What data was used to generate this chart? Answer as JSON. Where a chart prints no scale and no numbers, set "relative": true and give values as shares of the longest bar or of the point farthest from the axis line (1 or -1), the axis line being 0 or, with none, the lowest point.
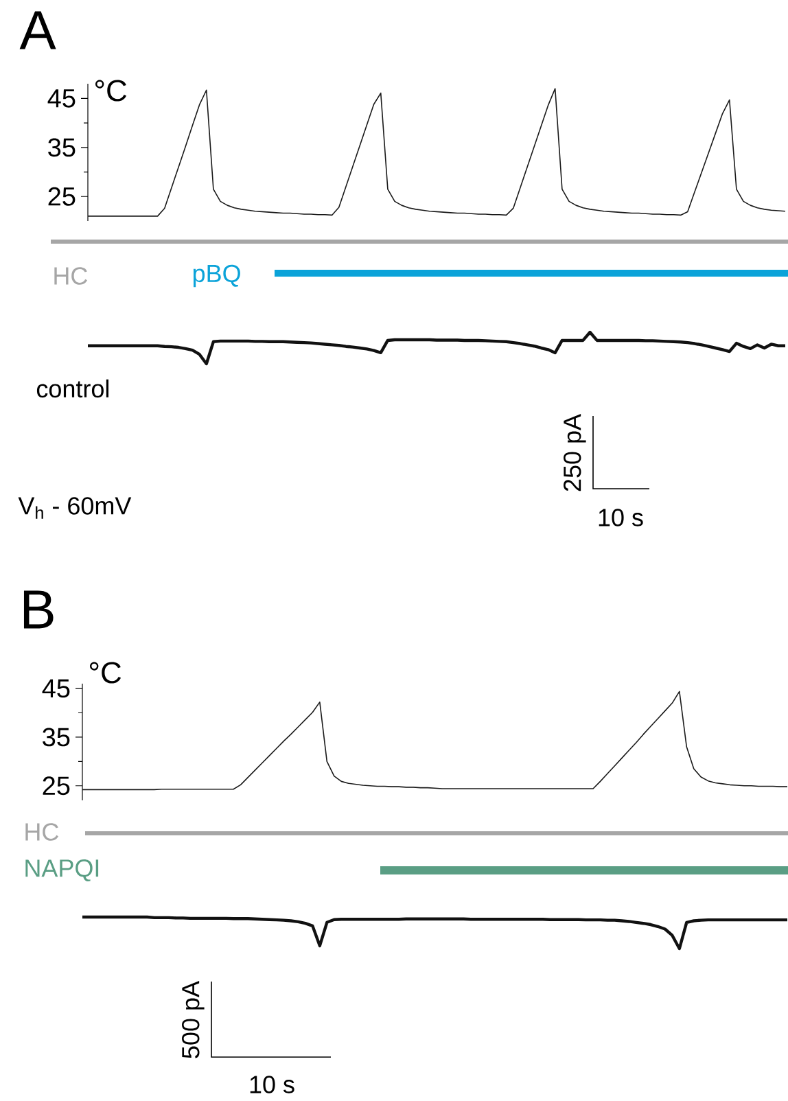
{
  "chart_data": [
    {
      "type": "line",
      "title": "A",
      "ylabel": "°C",
      "categories": [
        null,
        null,
        null,
        null,
        null,
        null,
        null,
        null,
        null,
        null,
        null,
        null,
        null,
        null,
        null,
        null,
        null,
        null,
        null,
        null,
        null,
        null,
        null,
        null,
        null,
        null,
        null,
        null,
        null,
        null,
        null,
        null,
        null,
        null,
        null,
        null,
        null,
        null,
        null,
        null,
        null,
        null,
        null,
        null,
        null,
        null,
        null,
        null,
        null,
        null,
        null,
        null,
        null,
        null,
        null,
        null,
        null,
        null,
        null,
        null,
        null,
        null,
        null,
        null,
        null,
        null,
        null,
        null,
        null,
        null,
        null,
        null,
        null,
        null,
        null,
        null,
        null,
        null,
        null,
        null,
        null,
        null,
        null,
        null,
        null,
        null,
        null,
        null,
        null,
        null,
        null,
        null,
        null,
        null,
        null,
        null,
        null,
        null,
        null,
        null,
        null
      ],
      "series": [
        {
          "color": "#1a1a1a",
          "values": [
            21,
            21,
            21,
            21,
            21,
            21,
            21,
            21,
            21,
            21,
            21,
            22.6,
            26.8,
            31,
            35.2,
            39.5,
            43.7,
            46.7,
            26.5,
            24,
            23.2,
            22.7,
            22.4,
            22.2,
            22,
            21.9,
            21.8,
            21.7,
            21.6,
            21.6,
            21.5,
            21.4,
            21.4,
            21.3,
            21.3,
            21.2,
            22.8,
            27,
            31.2,
            35.4,
            39.6,
            43.8,
            46.1,
            26.5,
            24,
            23.2,
            22.7,
            22.4,
            22.2,
            22,
            21.9,
            21.8,
            21.7,
            21.6,
            21.6,
            21.5,
            21.4,
            21.4,
            21.3,
            21.3,
            21.2,
            22.6,
            26.8,
            31,
            35.2,
            39.4,
            43.6,
            47,
            26.5,
            24,
            23.2,
            22.7,
            22.4,
            22.2,
            22,
            21.9,
            21.8,
            21.7,
            21.6,
            21.6,
            21.5,
            21.4,
            21.4,
            21.3,
            21.3,
            21.2,
            21.9,
            25.9,
            29.9,
            33.9,
            37.9,
            41.9,
            44.7,
            26.5,
            24,
            23.2,
            22.7,
            22.4,
            22.2,
            22.1,
            22
          ]
        }
      ],
      "ylim": [
        20,
        48
      ],
      "yticks": [
        25,
        35,
        45
      ],
      "tick_labels": "y",
      "annotations": [
        "HC",
        "pBQ"
      ]
    },
    {
      "type": "line",
      "relative": true,
      "categories": [
        null,
        null,
        null,
        null,
        null,
        null,
        null,
        null,
        null,
        null,
        null,
        null,
        null,
        null,
        null,
        null,
        null,
        null,
        null,
        null,
        null,
        null,
        null,
        null,
        null,
        null,
        null,
        null,
        null,
        null,
        null,
        null,
        null,
        null,
        null,
        null,
        null,
        null,
        null,
        null,
        null,
        null,
        null,
        null,
        null,
        null,
        null,
        null,
        null,
        null,
        null,
        null,
        null,
        null,
        null,
        null,
        null,
        null,
        null,
        null,
        null,
        null,
        null,
        null,
        null,
        null,
        null,
        null,
        null,
        null,
        null,
        null,
        null,
        null,
        null,
        null,
        null,
        null,
        null,
        null,
        null,
        null,
        null,
        null,
        null,
        null,
        null,
        null,
        null,
        null,
        null,
        null,
        null,
        null,
        null,
        null,
        null,
        null,
        null,
        null,
        null
      ],
      "series": [
        {
          "color": "#111111",
          "values": [
            0.57,
            0.57,
            0.57,
            0.57,
            0.57,
            0.57,
            0.57,
            0.57,
            0.57,
            0.57,
            0.57,
            0.55,
            0.54,
            0.52,
            0.48,
            0.43,
            0.3,
            0,
            0.7,
            0.72,
            0.72,
            0.72,
            0.72,
            0.72,
            0.71,
            0.71,
            0.7,
            0.7,
            0.7,
            0.69,
            0.68,
            0.67,
            0.66,
            0.64,
            0.62,
            0.6,
            0.58,
            0.55,
            0.53,
            0.5,
            0.47,
            0.42,
            0.35,
            0.74,
            0.76,
            0.76,
            0.76,
            0.76,
            0.76,
            0.76,
            0.75,
            0.75,
            0.75,
            0.75,
            0.74,
            0.74,
            0.74,
            0.73,
            0.72,
            0.71,
            0.7,
            0.67,
            0.64,
            0.6,
            0.56,
            0.5,
            0.45,
            0.35,
            0.74,
            0.74,
            0.74,
            0.74,
            1,
            0.74,
            0.74,
            0.74,
            0.74,
            0.74,
            0.74,
            0.74,
            0.73,
            0.73,
            0.72,
            0.71,
            0.7,
            0.69,
            0.67,
            0.64,
            0.6,
            0.55,
            0.5,
            0.45,
            0.39,
            0.65,
            0.55,
            0.48,
            0.6,
            0.5,
            0.62,
            0.57,
            0.57
          ]
        }
      ],
      "annotations": [
        "control",
        "V$_{h}$ - 60mV",
        "250 pA",
        "10 s"
      ]
    },
    {
      "type": "line",
      "title": "B",
      "ylabel": "°C",
      "categories": [
        null,
        null,
        null,
        null,
        null,
        null,
        null,
        null,
        null,
        null,
        null,
        null,
        null,
        null,
        null,
        null,
        null,
        null,
        null,
        null,
        null,
        null,
        null,
        null,
        null,
        null,
        null,
        null,
        null,
        null,
        null,
        null,
        null,
        null,
        null,
        null,
        null,
        null,
        null,
        null,
        null,
        null,
        null,
        null,
        null,
        null,
        null,
        null,
        null,
        null,
        null,
        null,
        null,
        null,
        null,
        null,
        null,
        null,
        null,
        null,
        null,
        null,
        null,
        null,
        null,
        null,
        null,
        null,
        null,
        null,
        null,
        null,
        null,
        null,
        null,
        null,
        null,
        null,
        null,
        null,
        null,
        null,
        null,
        null,
        null,
        null,
        null,
        null,
        null,
        null,
        null,
        null,
        null,
        null,
        null,
        null,
        null,
        null,
        null
      ],
      "series": [
        {
          "color": "#1a1a1a",
          "values": [
            24.2,
            24.2,
            24.2,
            24.2,
            24.2,
            24.2,
            24.2,
            24.2,
            24.2,
            24.2,
            24.2,
            24.3,
            24.3,
            24.3,
            24.3,
            24.3,
            24.3,
            24.3,
            24.3,
            24.3,
            24.3,
            24.3,
            25.2,
            26.7,
            28.2,
            29.7,
            31.2,
            32.7,
            34.2,
            35.6,
            37.1,
            38.6,
            40.1,
            42.2,
            30,
            27,
            25.9,
            25.5,
            25.3,
            25.1,
            25,
            24.9,
            24.9,
            24.8,
            24.8,
            24.7,
            24.7,
            24.6,
            24.6,
            24.5,
            24.4,
            24.4,
            24.4,
            24.4,
            24.4,
            24.4,
            24.4,
            24.4,
            24.4,
            24.4,
            24.4,
            24.4,
            24.4,
            24.4,
            24.4,
            24.4,
            24.4,
            24.4,
            24.4,
            24.4,
            24.4,
            24.4,
            25.9,
            27.5,
            29.1,
            30.7,
            32.3,
            33.9,
            35.6,
            37.2,
            38.8,
            40.4,
            42,
            44.4,
            33,
            28.5,
            26.8,
            26,
            25.6,
            25.4,
            25.2,
            25.1,
            25,
            25,
            24.9,
            24.9,
            24.9,
            24.8,
            24.8
          ]
        }
      ],
      "ylim": [
        22,
        46
      ],
      "yticks": [
        25,
        35,
        45
      ],
      "tick_labels": "y",
      "annotations": [
        "HC",
        "NAPQI"
      ]
    },
    {
      "type": "line",
      "relative": true,
      "categories": [
        null,
        null,
        null,
        null,
        null,
        null,
        null,
        null,
        null,
        null,
        null,
        null,
        null,
        null,
        null,
        null,
        null,
        null,
        null,
        null,
        null,
        null,
        null,
        null,
        null,
        null,
        null,
        null,
        null,
        null,
        null,
        null,
        null,
        null,
        null,
        null,
        null,
        null,
        null,
        null,
        null,
        null,
        null,
        null,
        null,
        null,
        null,
        null,
        null,
        null,
        null,
        null,
        null,
        null,
        null,
        null,
        null,
        null,
        null,
        null,
        null,
        null,
        null,
        null,
        null,
        null,
        null,
        null,
        null,
        null,
        null,
        null,
        null,
        null,
        null,
        null,
        null,
        null,
        null,
        null,
        null,
        null,
        null,
        null,
        null,
        null,
        null,
        null,
        null,
        null,
        null,
        null,
        null,
        null,
        null,
        null,
        null,
        null,
        null
      ],
      "series": [
        {
          "color": "#111111",
          "values": [
            1,
            1,
            1,
            1,
            1,
            1,
            1,
            1,
            1,
            1,
            0.98,
            0.98,
            0.98,
            0.97,
            0.97,
            0.96,
            0.96,
            0.96,
            0.96,
            0.96,
            0.96,
            0.95,
            0.95,
            0.95,
            0.94,
            0.93,
            0.92,
            0.91,
            0.9,
            0.88,
            0.85,
            0.8,
            0.72,
            0.09,
            0.83,
            0.92,
            0.93,
            0.93,
            0.93,
            0.93,
            0.93,
            0.93,
            0.93,
            0.93,
            0.93,
            0.94,
            0.94,
            0.94,
            0.94,
            0.94,
            0.94,
            0.94,
            0.94,
            0.94,
            0.93,
            0.93,
            0.93,
            0.93,
            0.93,
            0.93,
            0.93,
            0.93,
            0.93,
            0.93,
            0.93,
            0.92,
            0.92,
            0.92,
            0.92,
            0.92,
            0.91,
            0.91,
            0.91,
            0.9,
            0.9,
            0.88,
            0.86,
            0.83,
            0.8,
            0.76,
            0.7,
            0.62,
            0.42,
            0,
            0.83,
            0.88,
            0.9,
            0.91,
            0.91,
            0.91,
            0.91,
            0.91,
            0.91,
            0.91,
            0.91,
            0.91,
            0.91,
            0.91,
            0.91
          ]
        }
      ],
      "annotations": [
        "500 pA",
        "10 s"
      ]
    }
  ]
}
